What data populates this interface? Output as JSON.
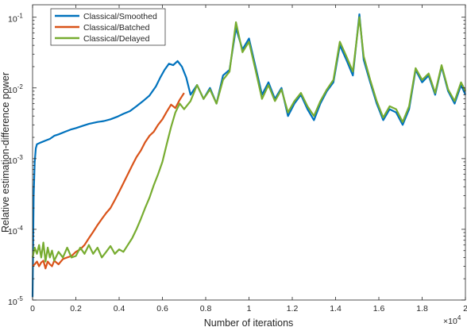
{
  "chart_data": {
    "type": "line",
    "xlabel": "Number of iterations",
    "ylabel": "Relative estimation-difference power",
    "x_multiplier_label": "×10",
    "x_multiplier_exp": "4",
    "xlim": [
      0,
      20000
    ],
    "ylim": [
      1e-05,
      0.15
    ],
    "yscale": "log",
    "x_ticks": [
      0,
      2000,
      4000,
      6000,
      8000,
      10000,
      12000,
      14000,
      16000,
      18000,
      20000
    ],
    "x_tick_labels": [
      "0",
      "0.2",
      "0.4",
      "0.6",
      "0.8",
      "1",
      "1.2",
      "1.4",
      "1.6",
      "1.8",
      "2"
    ],
    "y_ticks": [
      1e-05,
      0.0001,
      0.001,
      0.01,
      0.1
    ],
    "y_tick_bases": [
      "10",
      "10",
      "10",
      "10",
      "10"
    ],
    "y_tick_exps": [
      "-5",
      "-4",
      "-3",
      "-2",
      "-1"
    ],
    "grid": false,
    "legend_position": "top-left",
    "series": [
      {
        "name": "Classical/Smoothed",
        "color": "#0072BD",
        "x": [
          0,
          50,
          100,
          150,
          200,
          400,
          600,
          800,
          1000,
          1200,
          1500,
          1800,
          2000,
          2300,
          2600,
          3000,
          3300,
          3600,
          3900,
          4200,
          4500,
          4800,
          5100,
          5400,
          5700,
          5900,
          6100,
          6300,
          6500,
          6700,
          6900,
          7100,
          7300,
          7600,
          7900,
          8200,
          8500,
          8800,
          9100,
          9400,
          9700,
          10000,
          10300,
          10600,
          10900,
          11200,
          11500,
          11800,
          12100,
          12400,
          12700,
          13000,
          13300,
          13600,
          13900,
          14200,
          14500,
          14800,
          15100,
          15300,
          15600,
          15900,
          16200,
          16500,
          16800,
          17100,
          17400,
          17700,
          18000,
          18300,
          18600,
          18900,
          19200,
          19500,
          19800,
          20000
        ],
        "y": [
          1.1e-05,
          0.0003,
          0.0009,
          0.0014,
          0.0016,
          0.0017,
          0.0018,
          0.0019,
          0.0021,
          0.0022,
          0.0024,
          0.0026,
          0.0027,
          0.0029,
          0.0031,
          0.0033,
          0.0034,
          0.0036,
          0.0039,
          0.0043,
          0.0047,
          0.0055,
          0.0065,
          0.0078,
          0.0105,
          0.014,
          0.018,
          0.022,
          0.021,
          0.024,
          0.02,
          0.014,
          0.008,
          0.011,
          0.007,
          0.01,
          0.006,
          0.015,
          0.018,
          0.07,
          0.035,
          0.05,
          0.02,
          0.008,
          0.012,
          0.007,
          0.01,
          0.004,
          0.006,
          0.008,
          0.005,
          0.0035,
          0.006,
          0.009,
          0.012,
          0.04,
          0.025,
          0.015,
          0.11,
          0.025,
          0.012,
          0.006,
          0.0035,
          0.005,
          0.0045,
          0.003,
          0.005,
          0.018,
          0.012,
          0.015,
          0.008,
          0.02,
          0.009,
          0.006,
          0.011,
          0.008
        ]
      },
      {
        "name": "Classical/Batched",
        "color": "#D95319",
        "x": [
          0,
          100,
          200,
          300,
          400,
          500,
          600,
          700,
          800,
          900,
          1000,
          1200,
          1400,
          1600,
          1800,
          2000,
          2200,
          2400,
          2600,
          2800,
          3000,
          3200,
          3400,
          3600,
          3800,
          4000,
          4200,
          4400,
          4600,
          4800,
          5000,
          5200,
          5400,
          5600,
          5800,
          6000,
          6200,
          6400,
          6600,
          6800,
          7000
        ],
        "y": [
          3e-05,
          3.2e-05,
          3.5e-05,
          3e-05,
          3.4e-05,
          3.6e-05,
          2.8e-05,
          3.5e-05,
          3.2e-05,
          3e-05,
          3.6e-05,
          3.2e-05,
          3.8e-05,
          4e-05,
          4.2e-05,
          4.8e-05,
          5.2e-05,
          6e-05,
          7.5e-05,
          9.2e-05,
          0.000115,
          0.00014,
          0.00017,
          0.0002,
          0.00026,
          0.00034,
          0.00045,
          0.0006,
          0.0008,
          0.00105,
          0.0013,
          0.0017,
          0.0021,
          0.0024,
          0.003,
          0.0036,
          0.0046,
          0.0058,
          0.0052,
          0.0068,
          0.0085
        ]
      },
      {
        "name": "Classical/Delayed",
        "color": "#77AC30",
        "x": [
          0,
          100,
          200,
          300,
          400,
          500,
          600,
          700,
          800,
          900,
          1000,
          1200,
          1400,
          1600,
          1800,
          2000,
          2200,
          2400,
          2600,
          2800,
          3000,
          3200,
          3400,
          3600,
          3800,
          4000,
          4200,
          4400,
          4600,
          4800,
          5000,
          5200,
          5400,
          5600,
          5800,
          6000,
          6200,
          6400,
          6600,
          6800,
          7000,
          7300,
          7600,
          7900,
          8200,
          8500,
          8800,
          9100,
          9400,
          9700,
          10000,
          10300,
          10600,
          10900,
          11200,
          11500,
          11800,
          12100,
          12400,
          12700,
          13000,
          13300,
          13600,
          13900,
          14200,
          14500,
          14800,
          15100,
          15300,
          15600,
          15900,
          16200,
          16500,
          16800,
          17100,
          17400,
          17700,
          18000,
          18300,
          18600,
          18900,
          19200,
          19500,
          19800,
          20000
        ],
        "y": [
          4e-05,
          5.5e-05,
          4.5e-05,
          6e-05,
          4e-05,
          6.5e-05,
          3.5e-05,
          5.5e-05,
          4e-05,
          5e-05,
          3.6e-05,
          4.8e-05,
          4e-05,
          5.5e-05,
          4e-05,
          4.2e-05,
          5.5e-05,
          4.5e-05,
          6e-05,
          4.5e-05,
          5.5e-05,
          4e-05,
          4.8e-05,
          5.8e-05,
          4.5e-05,
          5.2e-05,
          4.8e-05,
          6e-05,
          7.5e-05,
          0.0001,
          0.00014,
          0.0002,
          0.00028,
          0.00042,
          0.0006,
          0.0009,
          0.0016,
          0.0028,
          0.0045,
          0.006,
          0.005,
          0.0065,
          0.011,
          0.007,
          0.0095,
          0.006,
          0.013,
          0.017,
          0.085,
          0.032,
          0.045,
          0.018,
          0.007,
          0.011,
          0.0065,
          0.0095,
          0.0045,
          0.0065,
          0.0085,
          0.0055,
          0.004,
          0.0065,
          0.0095,
          0.013,
          0.045,
          0.028,
          0.017,
          0.1,
          0.028,
          0.013,
          0.0065,
          0.0038,
          0.0055,
          0.005,
          0.0033,
          0.0055,
          0.019,
          0.013,
          0.016,
          0.0085,
          0.021,
          0.0095,
          0.0065,
          0.012,
          0.009
        ]
      }
    ]
  }
}
